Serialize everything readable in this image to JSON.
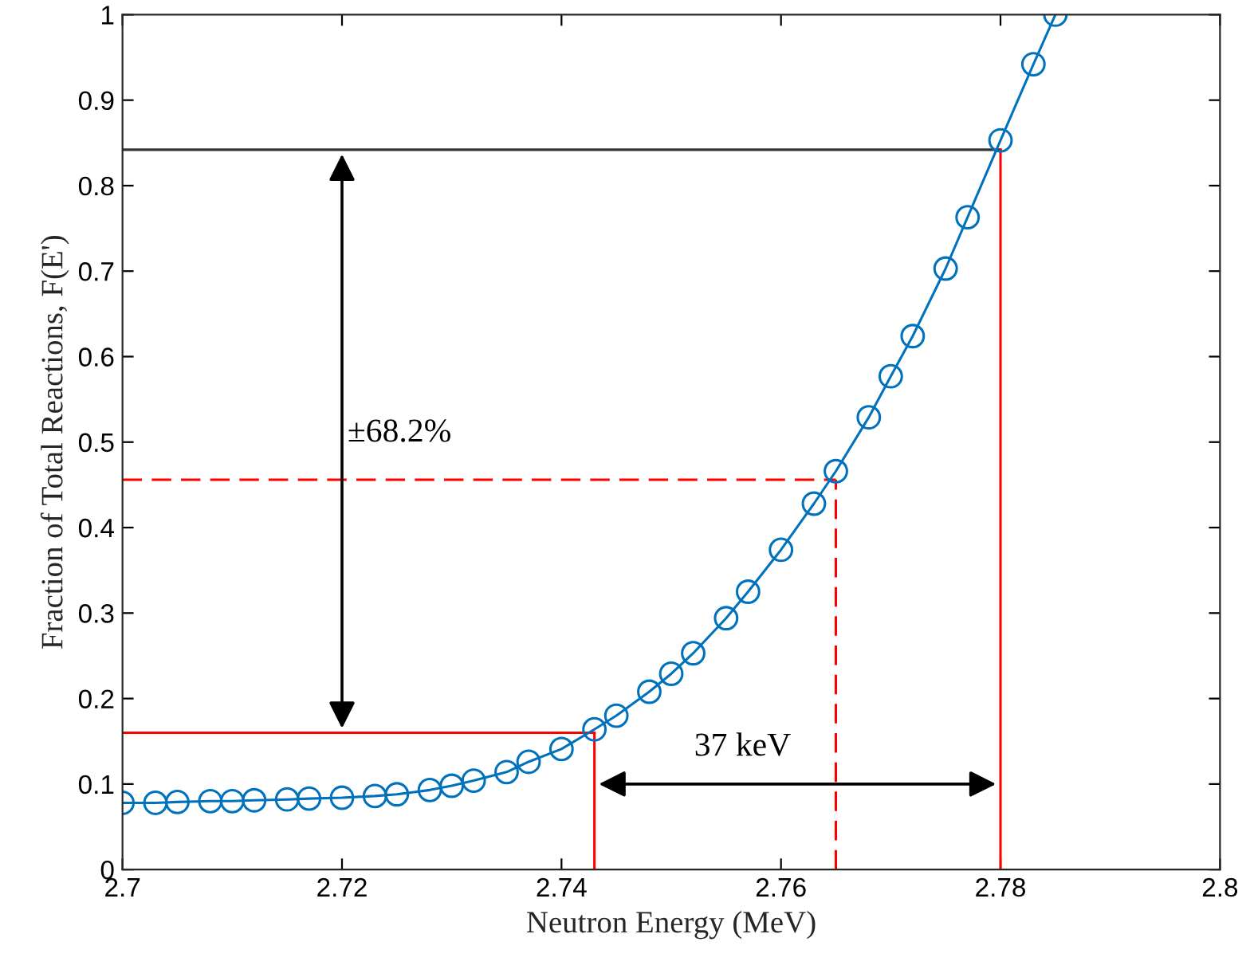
{
  "chart_data": {
    "type": "line",
    "xlabel": "Neutron Energy (MeV)",
    "ylabel": "Fraction of Total Reactions, F(E')",
    "series": [
      {
        "color": "#0072bd",
        "marker": "circle",
        "x": [
          2.7,
          2.703,
          2.705,
          2.708,
          2.71,
          2.712,
          2.715,
          2.717,
          2.72,
          2.723,
          2.725,
          2.728,
          2.73,
          2.732,
          2.735,
          2.737,
          2.74,
          2.743,
          2.745,
          2.748,
          2.75,
          2.752,
          2.755,
          2.757,
          2.76,
          2.763,
          2.765,
          2.768,
          2.77,
          2.772,
          2.775,
          2.777,
          2.78,
          2.783,
          2.785
        ],
        "values": [
          0.078,
          0.078,
          0.079,
          0.08,
          0.08,
          0.081,
          0.082,
          0.083,
          0.084,
          0.086,
          0.088,
          0.093,
          0.098,
          0.104,
          0.114,
          0.126,
          0.141,
          0.164,
          0.18,
          0.208,
          0.229,
          0.253,
          0.294,
          0.325,
          0.374,
          0.428,
          0.466,
          0.529,
          0.577,
          0.624,
          0.703,
          0.763,
          0.853,
          0.942,
          1.0
        ]
      }
    ],
    "xlim": [
      2.7,
      2.8
    ],
    "xticks": [
      2.7,
      2.72,
      2.74,
      2.76,
      2.78,
      2.8
    ],
    "ylim": [
      0,
      1
    ],
    "yticks": [
      {
        "value": 0,
        "label": "0"
      },
      0.1,
      0.2,
      0.3,
      0.4,
      0.5,
      0.6,
      0.7,
      0.8,
      0.9,
      {
        "value": 1,
        "label": "1"
      }
    ],
    "ref_lines": [
      {
        "axis": "y",
        "value": 0.16,
        "color": "#ff0000",
        "line_style": "solid"
      },
      {
        "axis": "y",
        "value": 0.456,
        "color": "#ff0000",
        "line_style": "dashed"
      },
      {
        "axis": "y",
        "value": 0.842,
        "color": "#333333",
        "line_style": "solid"
      },
      {
        "axis": "x",
        "value": 2.743,
        "color": "#ff0000",
        "line_style": "solid"
      },
      {
        "axis": "x",
        "value": 2.765,
        "color": "#ff0000",
        "line_style": "dashed"
      },
      {
        "axis": "x",
        "value": 2.78,
        "color": "#ff0000",
        "line_style": "solid"
      }
    ],
    "annotations": [
      "±68.2%",
      "37 keV"
    ],
    "grid": false,
    "legend": false
  }
}
